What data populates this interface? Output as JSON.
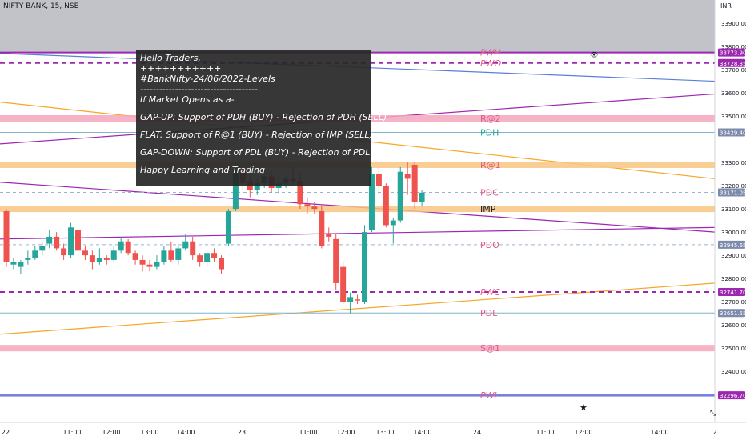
{
  "chart_title": "NIFTY BANK, 15, NSE",
  "currency": "INR",
  "note_lines": [
    "Hello Traders,",
    "+++++++++++",
    "#BankNifty-24/06/2022-Levels",
    "-------------------------------------",
    "If Market Opens as a-",
    "GAP-UP: Support of PDH (BUY) - Rejection of PDH (SELL)",
    "FLAT: Support of  R@1 (BUY) - Rejection of IMP (SELL)",
    "GAP-DOWN: Support of PDL (BUY) - Rejection of PDL (SELL)",
    "Happy Learning and Trading"
  ],
  "chart_data": {
    "type": "candlestick",
    "ylim": [
      32180,
      34000
    ],
    "y_ticks": [
      33900,
      33800,
      33700,
      33600,
      33500,
      33300,
      33200,
      33100,
      33000,
      32900,
      32800,
      32700,
      32600,
      32500,
      32400
    ],
    "x_ticks": [
      "22",
      "11:00",
      "12:00",
      "13:00",
      "14:00",
      "23",
      "11:00",
      "12:00",
      "13:00",
      "14:00",
      "24",
      "11:00",
      "12:00",
      "14:00",
      "2"
    ],
    "price_badges": [
      {
        "value": "33773.90",
        "price": 33773.9,
        "color": "#9c27b0"
      },
      {
        "value": "33728.35",
        "price": 33728.35,
        "color": "#9c27b0"
      },
      {
        "value": "33429.40",
        "price": 33429.4,
        "color": "#7c8bab"
      },
      {
        "value": "33171.05",
        "price": 33171.05,
        "color": "#7c8bab"
      },
      {
        "value": "32945.65",
        "price": 32945.65,
        "color": "#7c8bab"
      },
      {
        "value": "32741.70",
        "price": 32741.7,
        "color": "#9c27b0"
      },
      {
        "value": "32651.55",
        "price": 32651.55,
        "color": "#7c8bab"
      },
      {
        "value": "32296.70",
        "price": 32296.7,
        "color": "#9c27b0"
      }
    ],
    "levels": [
      {
        "name": "PWH",
        "price": 33773.9,
        "color": "#9c27b0",
        "style": "solid",
        "label_color": "#e05a8a"
      },
      {
        "name": "PWO",
        "price": 33728.35,
        "color": "#9c27b0",
        "style": "dashed",
        "label_color": "#e05a8a"
      },
      {
        "name": "R@2",
        "price": 33490,
        "color": "#f4a6bb",
        "style": "band",
        "label_color": "#e05a8a"
      },
      {
        "name": "PDH",
        "price": 33429.4,
        "color": "#7fb6c9",
        "style": "solid",
        "label_color": "#26a69a"
      },
      {
        "name": "R@1",
        "price": 33290,
        "color": "#f7c583",
        "style": "band",
        "label_color": "#e05a8a"
      },
      {
        "name": "PDC",
        "price": 33171.05,
        "color": "#9bb3d1",
        "style": "dashed",
        "label_color": "#e05a8a"
      },
      {
        "name": "IMP",
        "price": 33100,
        "color": "#f7c583",
        "style": "band",
        "label_color": "#131722"
      },
      {
        "name": "PDO",
        "price": 32945.65,
        "color": "#9bb3d1",
        "style": "dashed",
        "label_color": "#e05a8a"
      },
      {
        "name": "PWC",
        "price": 32741.7,
        "color": "#9c27b0",
        "style": "dashed",
        "label_color": "#e05a8a"
      },
      {
        "name": "PDL",
        "price": 32651.55,
        "color": "#7fb6c9",
        "style": "solid",
        "label_color": "#e05a8a"
      },
      {
        "name": "S@1",
        "price": 32500,
        "color": "#f4a6bb",
        "style": "band",
        "label_color": "#e05a8a"
      },
      {
        "name": "PWL",
        "price": 32296.7,
        "color": "#7b7fe0",
        "style": "solid",
        "label_color": "#e05a8a"
      }
    ],
    "candles": [
      {
        "o": 33090,
        "h": 33100,
        "l": 32850,
        "c": 32870
      },
      {
        "o": 32860,
        "h": 32890,
        "l": 32840,
        "c": 32870
      },
      {
        "o": 32850,
        "h": 32880,
        "l": 32820,
        "c": 32870
      },
      {
        "o": 32880,
        "h": 32920,
        "l": 32860,
        "c": 32890
      },
      {
        "o": 32890,
        "h": 32940,
        "l": 32880,
        "c": 32920
      },
      {
        "o": 32920,
        "h": 32960,
        "l": 32900,
        "c": 32940
      },
      {
        "o": 32950,
        "h": 33010,
        "l": 32930,
        "c": 32980
      },
      {
        "o": 32980,
        "h": 33000,
        "l": 32920,
        "c": 32930
      },
      {
        "o": 32930,
        "h": 32950,
        "l": 32880,
        "c": 32900
      },
      {
        "o": 32900,
        "h": 33040,
        "l": 32890,
        "c": 33020
      },
      {
        "o": 33010,
        "h": 33020,
        "l": 32900,
        "c": 32920
      },
      {
        "o": 32920,
        "h": 32940,
        "l": 32880,
        "c": 32900
      },
      {
        "o": 32900,
        "h": 32920,
        "l": 32840,
        "c": 32870
      },
      {
        "o": 32870,
        "h": 32930,
        "l": 32860,
        "c": 32890
      },
      {
        "o": 32890,
        "h": 32900,
        "l": 32860,
        "c": 32880
      },
      {
        "o": 32880,
        "h": 32940,
        "l": 32870,
        "c": 32920
      },
      {
        "o": 32920,
        "h": 32980,
        "l": 32910,
        "c": 32960
      },
      {
        "o": 32960,
        "h": 32970,
        "l": 32900,
        "c": 32910
      },
      {
        "o": 32910,
        "h": 32920,
        "l": 32860,
        "c": 32880
      },
      {
        "o": 32880,
        "h": 32900,
        "l": 32830,
        "c": 32860
      },
      {
        "o": 32860,
        "h": 32880,
        "l": 32830,
        "c": 32850
      },
      {
        "o": 32850,
        "h": 32900,
        "l": 32840,
        "c": 32870
      },
      {
        "o": 32870,
        "h": 32940,
        "l": 32860,
        "c": 32920
      },
      {
        "o": 32920,
        "h": 32960,
        "l": 32870,
        "c": 32880
      },
      {
        "o": 32880,
        "h": 32950,
        "l": 32860,
        "c": 32930
      },
      {
        "o": 32930,
        "h": 32990,
        "l": 32920,
        "c": 32960
      },
      {
        "o": 32960,
        "h": 32980,
        "l": 32880,
        "c": 32900
      },
      {
        "o": 32900,
        "h": 32910,
        "l": 32850,
        "c": 32870
      },
      {
        "o": 32870,
        "h": 32920,
        "l": 32850,
        "c": 32910
      },
      {
        "o": 32910,
        "h": 32930,
        "l": 32870,
        "c": 32890
      },
      {
        "o": 32890,
        "h": 32900,
        "l": 32820,
        "c": 32840
      },
      {
        "o": 32950,
        "h": 33100,
        "l": 32940,
        "c": 33090
      },
      {
        "o": 33100,
        "h": 33300,
        "l": 33090,
        "c": 33270
      },
      {
        "o": 33260,
        "h": 33290,
        "l": 33180,
        "c": 33210
      },
      {
        "o": 33220,
        "h": 33250,
        "l": 33150,
        "c": 33180
      },
      {
        "o": 33180,
        "h": 33230,
        "l": 33160,
        "c": 33210
      },
      {
        "o": 33210,
        "h": 33270,
        "l": 33190,
        "c": 33240
      },
      {
        "o": 33240,
        "h": 33260,
        "l": 33170,
        "c": 33190
      },
      {
        "o": 33190,
        "h": 33240,
        "l": 33170,
        "c": 33210
      },
      {
        "o": 33210,
        "h": 33250,
        "l": 33190,
        "c": 33230
      },
      {
        "o": 33230,
        "h": 33280,
        "l": 33200,
        "c": 33220
      },
      {
        "o": 33220,
        "h": 33250,
        "l": 33100,
        "c": 33120
      },
      {
        "o": 33120,
        "h": 33150,
        "l": 33080,
        "c": 33110
      },
      {
        "o": 33110,
        "h": 33130,
        "l": 33080,
        "c": 33100
      },
      {
        "o": 33090,
        "h": 33120,
        "l": 32930,
        "c": 32940
      },
      {
        "o": 32990,
        "h": 33020,
        "l": 32960,
        "c": 32980
      },
      {
        "o": 32970,
        "h": 32990,
        "l": 32750,
        "c": 32780
      },
      {
        "o": 32850,
        "h": 32870,
        "l": 32690,
        "c": 32700
      },
      {
        "o": 32700,
        "h": 32740,
        "l": 32650,
        "c": 32720
      },
      {
        "o": 32710,
        "h": 32730,
        "l": 32690,
        "c": 32705
      },
      {
        "o": 32700,
        "h": 33030,
        "l": 32690,
        "c": 33000
      },
      {
        "o": 33010,
        "h": 33280,
        "l": 33000,
        "c": 33250
      },
      {
        "o": 33250,
        "h": 33280,
        "l": 33160,
        "c": 33200
      },
      {
        "o": 33200,
        "h": 33210,
        "l": 33020,
        "c": 33030
      },
      {
        "o": 33030,
        "h": 33060,
        "l": 32950,
        "c": 33050
      },
      {
        "o": 33050,
        "h": 33280,
        "l": 33040,
        "c": 33260
      },
      {
        "o": 33250,
        "h": 33300,
        "l": 33160,
        "c": 33230
      },
      {
        "o": 33290,
        "h": 33300,
        "l": 33100,
        "c": 33130
      },
      {
        "o": 33130,
        "h": 33180,
        "l": 33110,
        "c": 33170
      }
    ]
  }
}
